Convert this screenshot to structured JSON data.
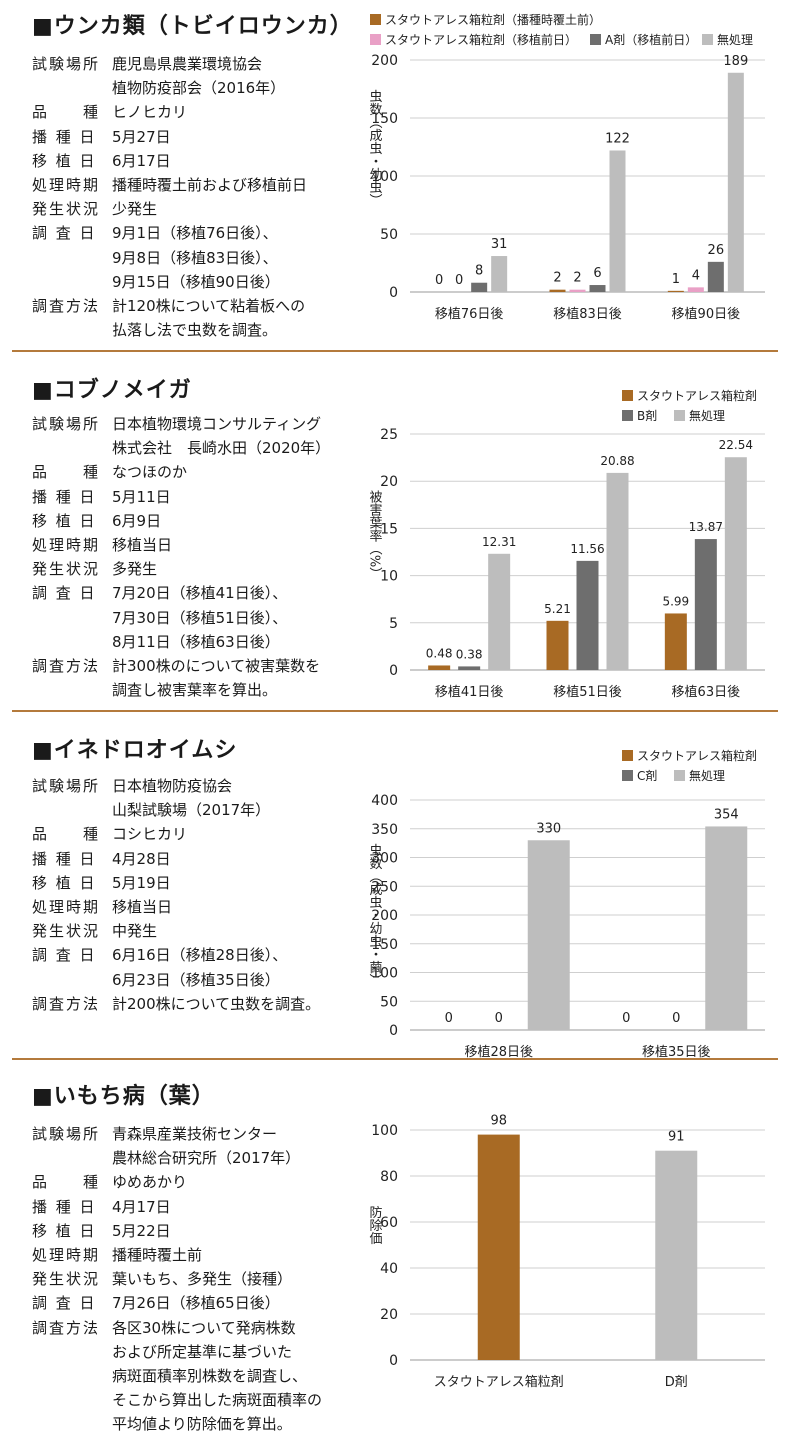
{
  "colors": {
    "stout": "#a86a24",
    "stout_pink": "#e9a0c6",
    "agent": "#6e6e6e",
    "untreated": "#bdbdbd",
    "divider": "#b47a3c"
  },
  "sections": [
    {
      "title": "■ウンカ類（トビイロウンカ）",
      "info": [
        {
          "key": "試験場所",
          "value": "鹿児島県農業環境協会\n植物防疫部会（2016年）"
        },
        {
          "key": "品　　種",
          "value": "ヒノヒカリ"
        },
        {
          "key": "播 種 日",
          "value": "5月27日"
        },
        {
          "key": "移 植 日",
          "value": "6月17日"
        },
        {
          "key": "処理時期",
          "value": "播種時覆土前および移植前日"
        },
        {
          "key": "発生状況",
          "value": "少発生"
        },
        {
          "key": "調 査 日",
          "value": "9月1日（移植76日後）、\n9月8日（移植83日後）、\n9月15日（移植90日後）"
        },
        {
          "key": "調査方法",
          "value": "計120株について粘着板への\n払落し法で虫数を調査。"
        }
      ]
    },
    {
      "title": "■コブノメイガ",
      "info": [
        {
          "key": "試験場所",
          "value": "日本植物環境コンサルティング\n株式会社　長崎水田（2020年）"
        },
        {
          "key": "品　　種",
          "value": "なつほのか"
        },
        {
          "key": "播 種 日",
          "value": "5月11日"
        },
        {
          "key": "移 植 日",
          "value": "6月9日"
        },
        {
          "key": "処理時期",
          "value": "移植当日"
        },
        {
          "key": "発生状況",
          "value": "多発生"
        },
        {
          "key": "調 査 日",
          "value": "7月20日（移植41日後）、\n7月30日（移植51日後）、\n8月11日（移植63日後）"
        },
        {
          "key": "調査方法",
          "value": "計300株のについて被害葉数を\n調査し被害葉率を算出。"
        }
      ]
    },
    {
      "title": "■イネドロオイムシ",
      "info": [
        {
          "key": "試験場所",
          "value": "日本植物防疫協会\n山梨試験場（2017年）"
        },
        {
          "key": "品　　種",
          "value": "コシヒカリ"
        },
        {
          "key": "播 種 日",
          "value": "4月28日"
        },
        {
          "key": "移 植 日",
          "value": "5月19日"
        },
        {
          "key": "処理時期",
          "value": "移植当日"
        },
        {
          "key": "発生状況",
          "value": "中発生"
        },
        {
          "key": "調 査 日",
          "value": "6月16日（移植28日後）、\n6月23日（移植35日後）"
        },
        {
          "key": "調査方法",
          "value": "計200株について虫数を調査。"
        }
      ]
    },
    {
      "title": "■いもち病（葉）",
      "info": [
        {
          "key": "試験場所",
          "value": "青森県産業技術センター\n農林総合研究所（2017年）"
        },
        {
          "key": "品　　種",
          "value": "ゆめあかり"
        },
        {
          "key": "播 種 日",
          "value": "4月17日"
        },
        {
          "key": "移 植 日",
          "value": "5月22日"
        },
        {
          "key": "処理時期",
          "value": "播種時覆土前"
        },
        {
          "key": "発生状況",
          "value": "葉いもち、多発生（接種）"
        },
        {
          "key": "調 査 日",
          "value": "7月26日（移植65日後）"
        },
        {
          "key": "調査方法",
          "value": "各区30株について発病株数\nおよび所定基準に基づいた\n病斑面積率別株数を調査し、\nそこから算出した病斑面積率の\n平均値より防除価を算出。"
        }
      ]
    }
  ],
  "chart_data": [
    {
      "type": "bar",
      "ylabel": "虫数（成虫・幼虫）",
      "ylim": [
        0,
        200
      ],
      "yticks": [
        0,
        50,
        100,
        150,
        200
      ],
      "categories": [
        "移植76日後",
        "移植83日後",
        "移植90日後"
      ],
      "series": [
        {
          "name": "スタウトアレス箱粒剤（播種時覆土前）",
          "color": "#a86a24",
          "values": [
            0,
            2,
            1
          ]
        },
        {
          "name": "スタウトアレス箱粒剤（移植前日）",
          "color": "#e9a0c6",
          "values": [
            0,
            2,
            4
          ]
        },
        {
          "name": "A剤（移植前日）",
          "color": "#6e6e6e",
          "values": [
            8,
            6,
            26
          ]
        },
        {
          "name": "無処理",
          "color": "#bdbdbd",
          "values": [
            31,
            122,
            189
          ]
        }
      ],
      "data_labels": [
        [
          "0",
          "0",
          "8",
          "31"
        ],
        [
          "2",
          "2",
          "6",
          "122"
        ],
        [
          "1",
          "4",
          "26",
          "189"
        ]
      ]
    },
    {
      "type": "bar",
      "ylabel": "被害葉率（%）",
      "ylim": [
        0,
        25
      ],
      "yticks": [
        0,
        5,
        10,
        15,
        20,
        25
      ],
      "categories": [
        "移植41日後",
        "移植51日後",
        "移植63日後"
      ],
      "series": [
        {
          "name": "スタウトアレス箱粒剤",
          "color": "#a86a24",
          "values": [
            0.48,
            5.21,
            5.99
          ]
        },
        {
          "name": "B剤",
          "color": "#6e6e6e",
          "values": [
            0.38,
            11.56,
            13.87
          ]
        },
        {
          "name": "無処理",
          "color": "#bdbdbd",
          "values": [
            12.31,
            20.88,
            22.54
          ]
        }
      ],
      "data_labels": [
        [
          "0.48",
          "0.38",
          "12.31"
        ],
        [
          "5.21",
          "11.56",
          "20.88"
        ],
        [
          "5.99",
          "13.87",
          "22.54"
        ]
      ]
    },
    {
      "type": "bar",
      "ylabel": "虫数（成虫・幼虫・繭）",
      "ylim": [
        0,
        400
      ],
      "yticks": [
        0,
        50,
        100,
        150,
        200,
        250,
        300,
        350,
        400
      ],
      "categories": [
        "移植28日後",
        "移植35日後"
      ],
      "series": [
        {
          "name": "スタウトアレス箱粒剤",
          "color": "#a86a24",
          "values": [
            0,
            0
          ]
        },
        {
          "name": "C剤",
          "color": "#6e6e6e",
          "values": [
            0,
            0
          ]
        },
        {
          "name": "無処理",
          "color": "#bdbdbd",
          "values": [
            330,
            354
          ]
        }
      ],
      "data_labels": [
        [
          "0",
          "0",
          "330"
        ],
        [
          "0",
          "0",
          "354"
        ]
      ]
    },
    {
      "type": "bar",
      "ylabel": "防除価",
      "ylim": [
        0,
        100
      ],
      "yticks": [
        0,
        20,
        40,
        60,
        80,
        100
      ],
      "categories": [
        "スタウトアレス箱粒剤",
        "D剤"
      ],
      "values": [
        98,
        91
      ],
      "colors": [
        "#a86a24",
        "#bdbdbd"
      ],
      "data_labels": [
        "98",
        "91"
      ]
    }
  ]
}
